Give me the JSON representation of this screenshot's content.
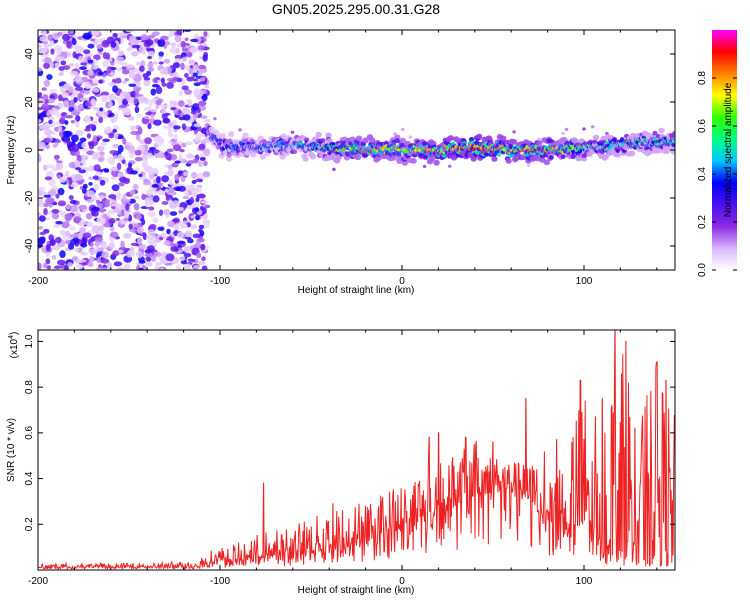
{
  "title": "GN05.2025.295.00.31.G28",
  "chart_data": [
    {
      "type": "heatmap",
      "name": "spectrogram",
      "xlabel": "Height of straight line (km)",
      "ylabel": "Frequency (Hz)",
      "xlim": [
        -200,
        150
      ],
      "ylim": [
        -50,
        50
      ],
      "xticks": [
        -200,
        -100,
        0,
        100
      ],
      "yticks": [
        -40,
        -20,
        0,
        20,
        40
      ],
      "colorbar": {
        "label": "Normalized spectral amplitude",
        "range": [
          0,
          1
        ],
        "ticks": [
          0.0,
          0.2,
          0.4,
          0.6,
          0.8
        ],
        "colors": [
          "#ffffff",
          "#d9b3ff",
          "#8a2be2",
          "#4b0ff0",
          "#0000ff",
          "#00c8ff",
          "#00ff80",
          "#32ff00",
          "#ffff00",
          "#ff8000",
          "#ff0000",
          "#ff00ff"
        ]
      },
      "regions": [
        {
          "name": "noise",
          "x_range": [
            -200,
            -107
          ],
          "freq_range": [
            -50,
            50
          ],
          "amplitude": "0.05-0.35 scattered"
        },
        {
          "name": "signal-band",
          "x_range": [
            -107,
            150
          ],
          "center_freq": [
            [
              -107,
              8
            ],
            [
              -100,
              2
            ],
            [
              -80,
              1
            ],
            [
              -60,
              2
            ],
            [
              -50,
              1
            ],
            [
              -40,
              1
            ],
            [
              -30,
              1
            ],
            [
              -20,
              0
            ],
            [
              0,
              0
            ],
            [
              20,
              0
            ],
            [
              40,
              1
            ],
            [
              60,
              0
            ],
            [
              80,
              0
            ],
            [
              100,
              1
            ],
            [
              120,
              2
            ],
            [
              150,
              4
            ]
          ],
          "bandwidth_hz": 3,
          "peak_amplitude": [
            [
              -107,
              0.4
            ],
            [
              -90,
              0.45
            ],
            [
              -60,
              0.5
            ],
            [
              -40,
              0.6
            ],
            [
              -20,
              0.85
            ],
            [
              0,
              0.75
            ],
            [
              20,
              0.9
            ],
            [
              40,
              0.95
            ],
            [
              60,
              0.9
            ],
            [
              80,
              0.85
            ],
            [
              100,
              0.6
            ],
            [
              150,
              0.55
            ]
          ]
        }
      ]
    },
    {
      "type": "line",
      "name": "snr",
      "xlabel": "Height of straight line (km)",
      "ylabel": "SNR (10 * v/v)",
      "y_scale_label": "(x10",
      "y_scale_exp": "4",
      "y_scale_suffix": ")",
      "xlim": [
        -200,
        150
      ],
      "ylim": [
        0,
        1.05
      ],
      "xticks": [
        -200,
        -100,
        0,
        100
      ],
      "yticks": [
        0.2,
        0.4,
        0.6,
        0.8,
        1.0
      ],
      "color": "#ee2222",
      "envelope": {
        "x": [
          -200,
          -150,
          -115,
          -105,
          -90,
          -80,
          -60,
          -40,
          -20,
          0,
          10,
          20,
          30,
          40,
          50,
          60,
          70,
          80,
          90,
          100,
          110,
          120,
          130,
          140,
          150
        ],
        "base": [
          0.01,
          0.01,
          0.01,
          0.03,
          0.04,
          0.05,
          0.06,
          0.08,
          0.12,
          0.18,
          0.2,
          0.24,
          0.28,
          0.32,
          0.34,
          0.33,
          0.28,
          0.22,
          0.15,
          0.1,
          0.08,
          0.06,
          0.05,
          0.04,
          0.04
        ],
        "top": [
          0.03,
          0.03,
          0.04,
          0.09,
          0.12,
          0.16,
          0.2,
          0.26,
          0.32,
          0.38,
          0.45,
          0.55,
          0.5,
          0.58,
          0.5,
          0.48,
          0.46,
          0.55,
          0.58,
          0.8,
          0.75,
          0.98,
          0.85,
          0.9,
          0.68
        ]
      },
      "peaks": [
        [
          -76,
          0.38
        ],
        [
          -38,
          0.29
        ],
        [
          15,
          0.58
        ],
        [
          20,
          0.6
        ],
        [
          35,
          0.58
        ],
        [
          50,
          0.56
        ],
        [
          68,
          0.75
        ],
        [
          85,
          0.57
        ],
        [
          98,
          0.83
        ],
        [
          110,
          0.75
        ],
        [
          117,
          1.05
        ],
        [
          123,
          1.0
        ],
        [
          128,
          0.62
        ],
        [
          140,
          0.91
        ],
        [
          145,
          0.83
        ],
        [
          150,
          0.68
        ]
      ]
    }
  ]
}
